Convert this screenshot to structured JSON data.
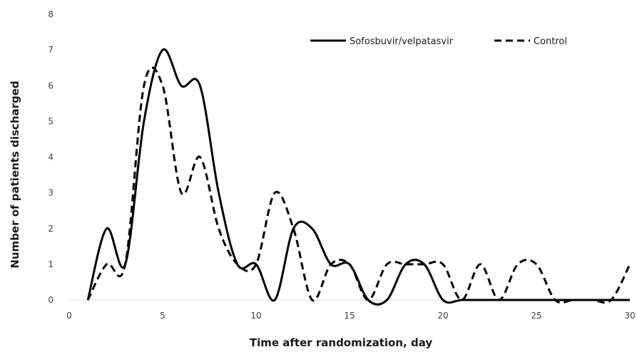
{
  "chart_data": {
    "type": "line",
    "title": "",
    "xlabel": "Time after randomization, day",
    "ylabel": "Number of patients discharged",
    "xlim": [
      0,
      30
    ],
    "ylim": [
      0,
      8
    ],
    "xticks": [
      0,
      5,
      10,
      15,
      20,
      25,
      30
    ],
    "yticks": [
      0,
      1,
      2,
      3,
      4,
      5,
      6,
      7,
      8
    ],
    "grid": false,
    "smoothed": true,
    "legend_position": "top-right",
    "series": [
      {
        "name": "Sofosbuvir/velpatasvir",
        "style": "solid",
        "color": "#000000",
        "x": [
          1,
          2,
          3,
          4,
          5,
          6,
          7,
          8,
          9,
          10,
          11,
          12,
          13,
          14,
          15,
          16,
          17,
          18,
          19,
          20,
          21,
          22,
          23,
          24,
          25,
          26,
          27,
          28,
          29,
          30
        ],
        "y": [
          0,
          2,
          1,
          5,
          7,
          6,
          6,
          3,
          1,
          1,
          0,
          2,
          2,
          1,
          1,
          0,
          0,
          1,
          1,
          0,
          0,
          0,
          0,
          0,
          0,
          0,
          0,
          0,
          0,
          0
        ]
      },
      {
        "name": "Control",
        "style": "dashed",
        "color": "#000000",
        "x": [
          1,
          2,
          3,
          4,
          5,
          6,
          7,
          8,
          9,
          10,
          11,
          12,
          13,
          14,
          15,
          16,
          17,
          18,
          19,
          20,
          21,
          22,
          23,
          24,
          25,
          26,
          27,
          28,
          29,
          30
        ],
        "y": [
          0,
          1,
          1,
          6,
          6,
          3,
          4,
          2,
          1,
          1,
          3,
          2,
          0,
          1,
          1,
          0,
          1,
          1,
          1,
          1,
          0,
          1,
          0,
          1,
          1,
          0,
          0,
          0,
          0,
          1
        ]
      }
    ]
  }
}
